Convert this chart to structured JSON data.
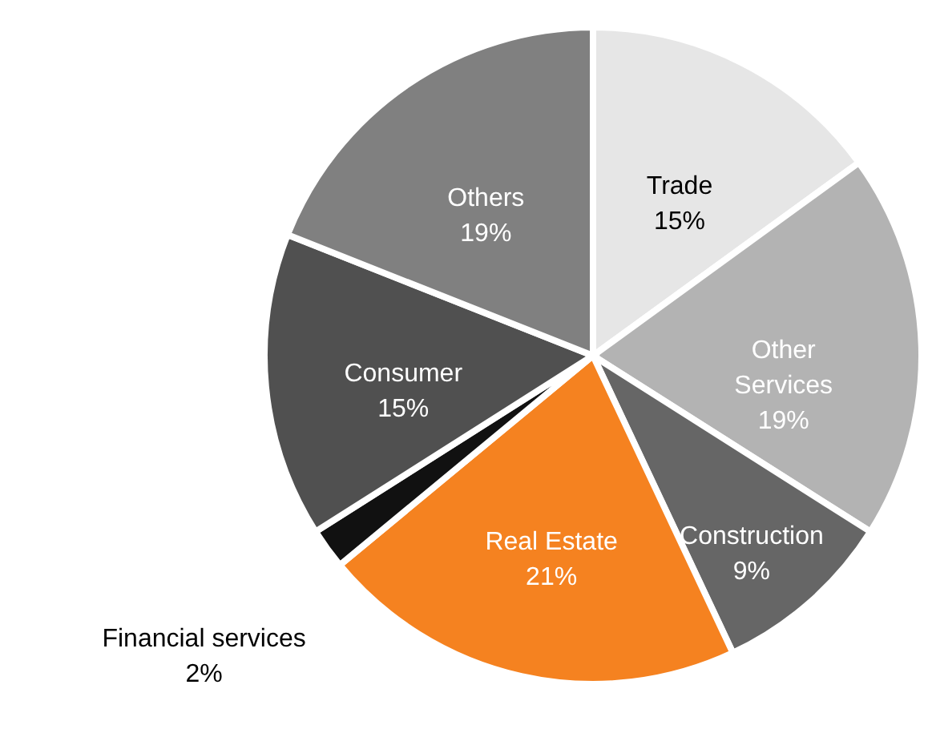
{
  "chart_data": {
    "type": "pie",
    "categories": [
      "Trade",
      "Other Services",
      "Construction",
      "Real Estate",
      "Financial services",
      "Consumer",
      "Others"
    ],
    "values": [
      15,
      19,
      9,
      21,
      2,
      15,
      19
    ],
    "value_labels": [
      "15%",
      "19%",
      "9%",
      "21%",
      "2%",
      "15%",
      "19%"
    ],
    "colors": [
      "#e6e6e6",
      "#b3b3b3",
      "#666666",
      "#f58220",
      "#111111",
      "#505050",
      "#808080"
    ]
  }
}
